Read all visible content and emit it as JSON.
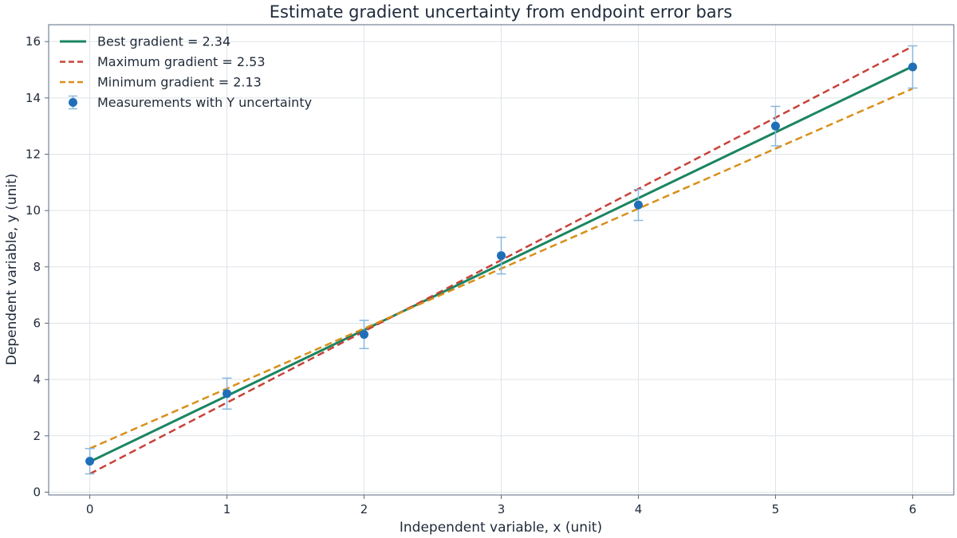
{
  "chart_data": {
    "type": "scatter",
    "title": "Estimate gradient uncertainty from endpoint error bars",
    "xlabel": "Independent variable, x (unit)",
    "ylabel": "Dependent variable, y (unit)",
    "xlim": [
      -0.3,
      6.3
    ],
    "ylim": [
      -0.1,
      16.6
    ],
    "x_ticks": [
      0,
      1,
      2,
      3,
      4,
      5,
      6
    ],
    "y_ticks": [
      0,
      2,
      4,
      6,
      8,
      10,
      12,
      14,
      16
    ],
    "grid": true,
    "legend_position": "top-left",
    "points": {
      "name": "Measurements with Y uncertainty",
      "x": [
        0,
        1,
        2,
        3,
        4,
        5,
        6
      ],
      "y": [
        1.1,
        3.5,
        5.6,
        8.4,
        10.2,
        13.0,
        15.1
      ],
      "y_err": [
        0.45,
        0.55,
        0.5,
        0.65,
        0.55,
        0.7,
        0.75
      ],
      "color": "#1f6fb8",
      "errorbar_color": "#8ab8dd"
    },
    "lines": [
      {
        "name": "Best gradient = 2.34",
        "slope": 2.34,
        "intercept": 1.08,
        "color": "#1a8561",
        "style": "solid"
      },
      {
        "name": "Maximum gradient = 2.53",
        "slope": 2.53,
        "intercept": 0.65,
        "color": "#c8423a",
        "style": "dashed"
      },
      {
        "name": "Minimum gradient = 2.13",
        "slope": 2.13,
        "intercept": 1.55,
        "color": "#d98f1a",
        "style": "dashed"
      }
    ]
  }
}
